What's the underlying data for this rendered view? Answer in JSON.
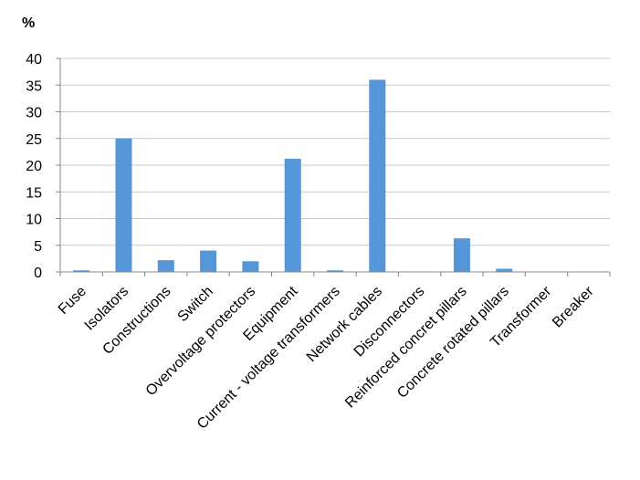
{
  "chart_data": {
    "type": "bar",
    "y_label": "%",
    "categories": [
      "Fuse",
      "Isolators",
      "Constructions",
      "Switch",
      "Overvoltage protectors",
      "Equipment",
      "Current - voltage transformers",
      "Network cables",
      "Disconnectors",
      "Reinforced concret pillars",
      "Concrete rotated pillars",
      "Transformer",
      "Breaker"
    ],
    "values": [
      0.3,
      25,
      2.2,
      4,
      2,
      21.2,
      0.3,
      36,
      0,
      6.3,
      0.6,
      0,
      0
    ],
    "color": "#5596d8",
    "ylim": [
      0,
      40
    ],
    "yticks": [
      0,
      5,
      10,
      15,
      20,
      25,
      30,
      35,
      40
    ],
    "grid": true
  }
}
